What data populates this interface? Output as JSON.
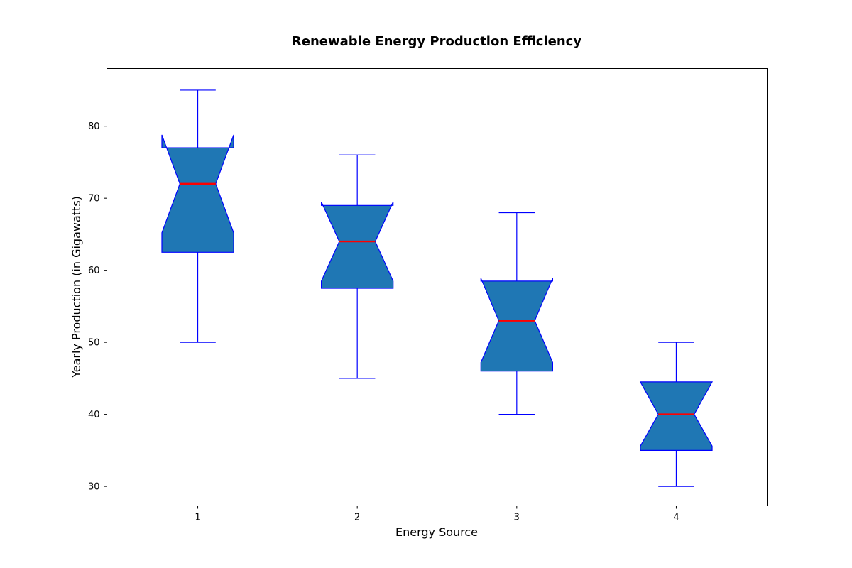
{
  "chart_data": {
    "type": "box",
    "title": "Renewable Energy Production Efficiency",
    "xlabel": "Energy Source",
    "ylabel": "Yearly Production (in Gigawatts)",
    "categories": [
      "1",
      "2",
      "3",
      "4"
    ],
    "ylim": [
      27.3,
      88
    ],
    "yticks": [
      30,
      40,
      50,
      60,
      70,
      80
    ],
    "notched": true,
    "boxes": [
      {
        "category": "1",
        "whisker_low": 50,
        "q1": 62.5,
        "median": 72,
        "q3": 77,
        "whisker_high": 85,
        "notch_low": 65.2,
        "notch_high": 78.8
      },
      {
        "category": "2",
        "whisker_low": 45,
        "q1": 57.5,
        "median": 64,
        "q3": 69,
        "whisker_high": 76,
        "notch_low": 58.5,
        "notch_high": 69.5
      },
      {
        "category": "3",
        "whisker_low": 40,
        "q1": 46,
        "median": 53,
        "q3": 58.5,
        "whisker_high": 68,
        "notch_low": 47.2,
        "notch_high": 58.9
      },
      {
        "category": "4",
        "whisker_low": 30,
        "q1": 35,
        "median": 40,
        "q3": 44.5,
        "whisker_high": 50,
        "notch_low": 35.6,
        "notch_high": 44.5
      }
    ],
    "colors": {
      "box_fill": "#1f77b4",
      "box_edge": "#0000ff",
      "whisker": "#0000ff",
      "median": "#ff0000"
    },
    "grid": false,
    "legend": "none"
  }
}
